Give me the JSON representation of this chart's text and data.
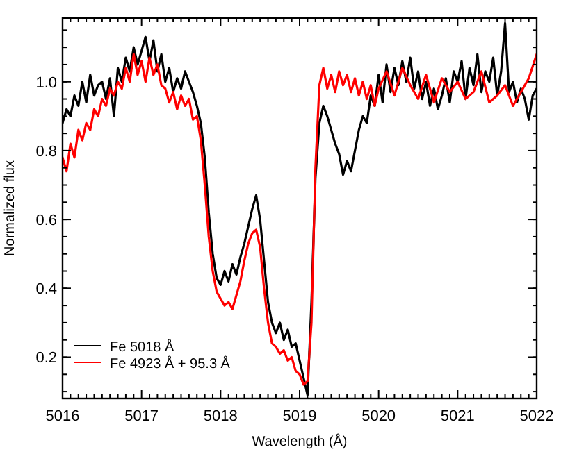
{
  "chart_data": {
    "type": "line",
    "xlabel": "Wavelength (Å)",
    "ylabel": "Normalized flux",
    "xlim": [
      5016,
      5022
    ],
    "ylim": [
      0.08,
      1.185
    ],
    "xticks": [
      5016,
      5017,
      5018,
      5019,
      5020,
      5021,
      5022
    ],
    "yticks": [
      {
        "value": 0.2,
        "label": "0.2"
      },
      {
        "value": 0.4,
        "label": "0.4"
      },
      {
        "value": 0.6,
        "label": "0.6"
      },
      {
        "value": 0.8,
        "label": "0.8"
      },
      {
        "value": 1.0,
        "label": "1.0"
      }
    ],
    "grid": false,
    "legend": "bottom left",
    "marker": "none",
    "line_style": "solid",
    "series": [
      {
        "name": "Fe 5018 Å",
        "color": "#000000",
        "x": [
          5016,
          5016.05,
          5016.1,
          5016.15,
          5016.2,
          5016.25,
          5016.3,
          5016.35,
          5016.4,
          5016.45,
          5016.5,
          5016.55,
          5016.6,
          5016.65,
          5016.7,
          5016.75,
          5016.8,
          5016.85,
          5016.9,
          5016.95,
          5017,
          5017.05,
          5017.1,
          5017.15,
          5017.2,
          5017.25,
          5017.3,
          5017.35,
          5017.4,
          5017.45,
          5017.5,
          5017.55,
          5017.6,
          5017.65,
          5017.7,
          5017.75,
          5017.8,
          5017.85,
          5017.9,
          5017.95,
          5018,
          5018.05,
          5018.1,
          5018.15,
          5018.2,
          5018.25,
          5018.3,
          5018.35,
          5018.4,
          5018.45,
          5018.5,
          5018.55,
          5018.6,
          5018.65,
          5018.7,
          5018.75,
          5018.8,
          5018.85,
          5018.9,
          5018.95,
          5019,
          5019.05,
          5019.1,
          5019.15,
          5019.2,
          5019.25,
          5019.3,
          5019.35,
          5019.4,
          5019.45,
          5019.5,
          5019.55,
          5019.6,
          5019.65,
          5019.7,
          5019.75,
          5019.8,
          5019.85,
          5019.9,
          5019.95,
          5020,
          5020.05,
          5020.1,
          5020.15,
          5020.2,
          5020.25,
          5020.3,
          5020.35,
          5020.4,
          5020.45,
          5020.5,
          5020.55,
          5020.6,
          5020.65,
          5020.7,
          5020.75,
          5020.8,
          5020.85,
          5020.9,
          5020.95,
          5021,
          5021.05,
          5021.1,
          5021.15,
          5021.2,
          5021.25,
          5021.3,
          5021.35,
          5021.4,
          5021.45,
          5021.5,
          5021.55,
          5021.6,
          5021.65,
          5021.7,
          5021.75,
          5021.8,
          5021.85,
          5021.9,
          5021.95,
          5022
        ],
        "values": [
          0.88,
          0.92,
          0.9,
          0.96,
          0.93,
          1.0,
          0.94,
          1.02,
          0.96,
          0.99,
          1.0,
          0.95,
          1.01,
          0.9,
          1.04,
          1.0,
          1.07,
          1.03,
          1.1,
          1.05,
          1.09,
          1.13,
          1.06,
          1.12,
          1.03,
          1.08,
          1.0,
          1.04,
          0.97,
          1.01,
          0.98,
          1.03,
          1.0,
          0.97,
          0.93,
          0.88,
          0.78,
          0.62,
          0.5,
          0.43,
          0.41,
          0.45,
          0.42,
          0.47,
          0.44,
          0.49,
          0.53,
          0.58,
          0.63,
          0.67,
          0.6,
          0.48,
          0.36,
          0.3,
          0.27,
          0.3,
          0.25,
          0.28,
          0.23,
          0.24,
          0.19,
          0.14,
          0.09,
          0.36,
          0.72,
          0.88,
          0.93,
          0.9,
          0.86,
          0.82,
          0.79,
          0.73,
          0.77,
          0.74,
          0.8,
          0.86,
          0.9,
          0.88,
          0.96,
          0.93,
          1.02,
          0.94,
          1.05,
          0.97,
          1.04,
          0.99,
          1.06,
          1.0,
          1.07,
          0.98,
          1.03,
          0.95,
          1.0,
          0.93,
          0.98,
          0.92,
          0.96,
          1.01,
          0.94,
          1.03,
          1.0,
          1.06,
          0.95,
          1.04,
          0.99,
          1.08,
          0.97,
          1.03,
          1.0,
          1.07,
          0.96,
          1.03,
          1.17,
          0.97,
          1.0,
          0.94,
          0.98,
          0.95,
          0.89,
          0.96,
          0.98
        ]
      },
      {
        "name": "Fe 4923 Å + 95.3 Å",
        "color": "#ff0000",
        "x": [
          5016,
          5016.05,
          5016.1,
          5016.15,
          5016.2,
          5016.25,
          5016.3,
          5016.35,
          5016.4,
          5016.45,
          5016.5,
          5016.55,
          5016.6,
          5016.65,
          5016.7,
          5016.75,
          5016.8,
          5016.85,
          5016.9,
          5016.95,
          5017,
          5017.05,
          5017.1,
          5017.15,
          5017.2,
          5017.25,
          5017.3,
          5017.35,
          5017.4,
          5017.45,
          5017.5,
          5017.55,
          5017.6,
          5017.65,
          5017.7,
          5017.75,
          5017.8,
          5017.85,
          5017.9,
          5017.95,
          5018,
          5018.05,
          5018.1,
          5018.15,
          5018.2,
          5018.25,
          5018.3,
          5018.35,
          5018.4,
          5018.45,
          5018.5,
          5018.55,
          5018.6,
          5018.65,
          5018.7,
          5018.75,
          5018.8,
          5018.85,
          5018.9,
          5018.95,
          5019,
          5019.05,
          5019.1,
          5019.15,
          5019.2,
          5019.25,
          5019.3,
          5019.35,
          5019.4,
          5019.45,
          5019.5,
          5019.55,
          5019.6,
          5019.65,
          5019.7,
          5019.75,
          5019.8,
          5019.85,
          5019.9,
          5019.95,
          5020,
          5020.1,
          5020.2,
          5020.3,
          5020.4,
          5020.5,
          5020.6,
          5020.7,
          5020.8,
          5020.9,
          5021,
          5021.1,
          5021.2,
          5021.3,
          5021.4,
          5021.5,
          5021.6,
          5021.7,
          5021.8,
          5021.9,
          5022
        ],
        "values": [
          0.78,
          0.74,
          0.82,
          0.78,
          0.86,
          0.83,
          0.88,
          0.86,
          0.92,
          0.9,
          0.95,
          0.93,
          0.98,
          0.96,
          1.0,
          0.98,
          1.04,
          1.0,
          1.08,
          1.02,
          1.06,
          1.0,
          1.07,
          1.02,
          1.05,
          0.99,
          0.98,
          0.94,
          0.97,
          0.92,
          0.96,
          0.93,
          0.95,
          0.89,
          0.9,
          0.83,
          0.7,
          0.55,
          0.45,
          0.39,
          0.37,
          0.35,
          0.36,
          0.34,
          0.38,
          0.42,
          0.48,
          0.53,
          0.56,
          0.57,
          0.52,
          0.4,
          0.3,
          0.24,
          0.23,
          0.21,
          0.22,
          0.19,
          0.2,
          0.16,
          0.15,
          0.12,
          0.13,
          0.3,
          0.75,
          0.99,
          1.04,
          0.98,
          1.02,
          0.97,
          1.03,
          0.99,
          1.02,
          0.97,
          1.01,
          0.96,
          1.0,
          0.95,
          0.99,
          0.93,
          0.98,
          1.03,
          0.96,
          1.04,
          0.99,
          0.95,
          1.02,
          0.94,
          1.01,
          0.97,
          1.0,
          0.95,
          0.97,
          1.03,
          0.94,
          0.96,
          0.99,
          0.93,
          0.97,
          1.01,
          1.08
        ]
      }
    ]
  }
}
